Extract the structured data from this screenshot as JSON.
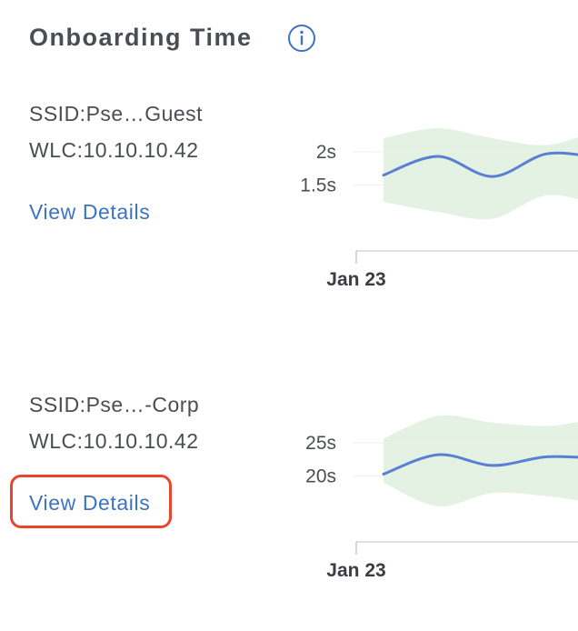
{
  "header": {
    "title": "Onboarding Time",
    "info_icon": "info-circle-icon"
  },
  "colors": {
    "accent_link": "#3b73c5",
    "series_line": "#5b7fd3",
    "band_fill": "#e3f2e3",
    "highlight": "#e8452c"
  },
  "cards": [
    {
      "ssid": "SSID:Pse…Guest",
      "wlc": "WLC:10.10.10.42",
      "link_label": "View Details"
    },
    {
      "ssid": "SSID:Pse…-Corp",
      "wlc": "WLC:10.10.10.42",
      "link_label": "View Details"
    }
  ],
  "chart_data": [
    {
      "type": "line",
      "xlabel": "",
      "ylabel": "",
      "x_tick_labels": [
        "Jan 23"
      ],
      "y_tick_labels": [
        "2s",
        "1.5s"
      ],
      "y_ticks": [
        2,
        1.5
      ],
      "ylim": [
        0.6,
        2.5
      ],
      "grid": true,
      "series": [
        {
          "x": [
            0,
            1,
            2,
            3,
            4
          ],
          "values": [
            1.65,
            1.93,
            1.63,
            1.97,
            1.9
          ]
        }
      ],
      "band": {
        "x": [
          0,
          1,
          2,
          3,
          4,
          5
        ],
        "upper": [
          2.2,
          2.35,
          2.2,
          2.1,
          2.3,
          2.25
        ],
        "lower": [
          1.25,
          1.1,
          1.0,
          1.35,
          1.2,
          1.1
        ]
      }
    },
    {
      "type": "line",
      "xlabel": "",
      "ylabel": "",
      "x_tick_labels": [
        "Jan 23"
      ],
      "y_tick_labels": [
        "25s",
        "20s"
      ],
      "y_ticks": [
        25,
        20
      ],
      "ylim": [
        11,
        30
      ],
      "grid": true,
      "series": [
        {
          "x": [
            0,
            1,
            2,
            3,
            4
          ],
          "values": [
            20.3,
            23.2,
            21.6,
            22.9,
            22.6
          ]
        }
      ],
      "band": {
        "x": [
          0,
          1,
          2,
          3,
          4,
          5
        ],
        "upper": [
          25.6,
          29.0,
          28.0,
          27.5,
          28.5,
          28.0
        ],
        "lower": [
          19.0,
          15.5,
          17.5,
          17.0,
          16.0,
          16.5
        ]
      }
    }
  ]
}
